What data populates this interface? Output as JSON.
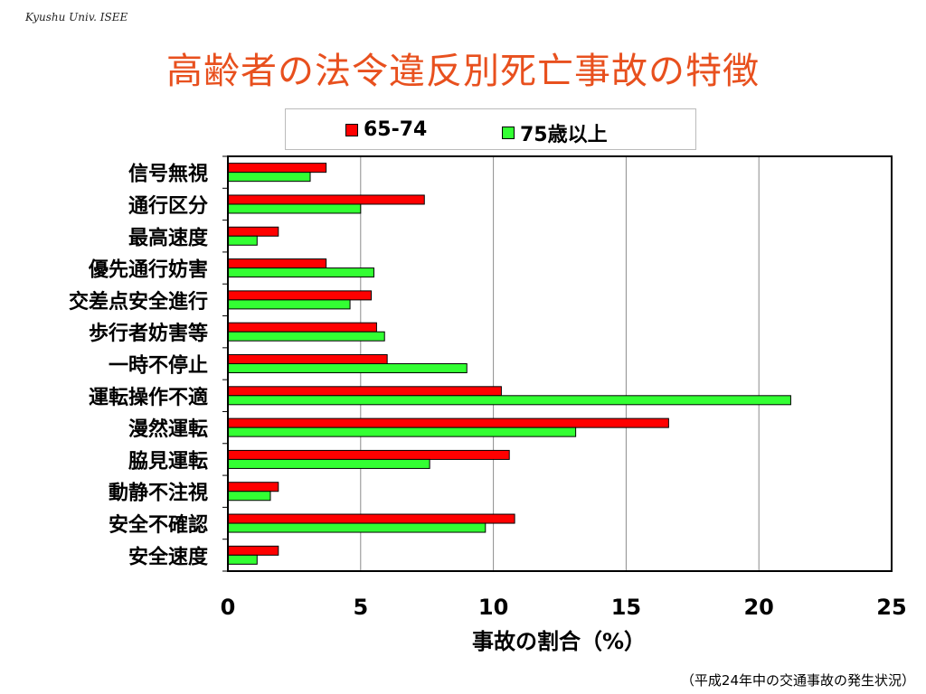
{
  "header": {
    "label": "Kyushu Univ. ISEE"
  },
  "title": "高齢者の法令違反別死亡事故の特徴",
  "footnote": "（平成24年中の交通事故の発生状況）",
  "colors": {
    "title": "#e8501e",
    "series_65_74": "#ff0000",
    "series_75_plus": "#33ff33"
  },
  "chart_data": {
    "type": "bar",
    "orientation": "horizontal",
    "categories": [
      "信号無視",
      "通行区分",
      "最高速度",
      "優先通行妨害",
      "交差点安全進行",
      "歩行者妨害等",
      "一時不停止",
      "運転操作不適",
      "漫然運転",
      "脇見運転",
      "動静不注視",
      "安全不確認",
      "安全速度"
    ],
    "series": [
      {
        "name": "65-74",
        "color": "#ff0000",
        "values": [
          3.7,
          7.4,
          1.9,
          3.7,
          5.4,
          5.6,
          6.0,
          10.3,
          16.6,
          10.6,
          1.9,
          10.8,
          1.9
        ]
      },
      {
        "name": "75歳以上",
        "color": "#33ff33",
        "values": [
          3.1,
          5.0,
          1.1,
          5.5,
          4.6,
          5.9,
          9.0,
          21.2,
          13.1,
          7.6,
          1.6,
          9.7,
          1.1
        ]
      }
    ],
    "xlabel": "事故の割合（%）",
    "xlim": [
      0,
      25
    ],
    "xticks": [
      0,
      5,
      10,
      15,
      20,
      25
    ],
    "grid": true,
    "legend": "top"
  }
}
